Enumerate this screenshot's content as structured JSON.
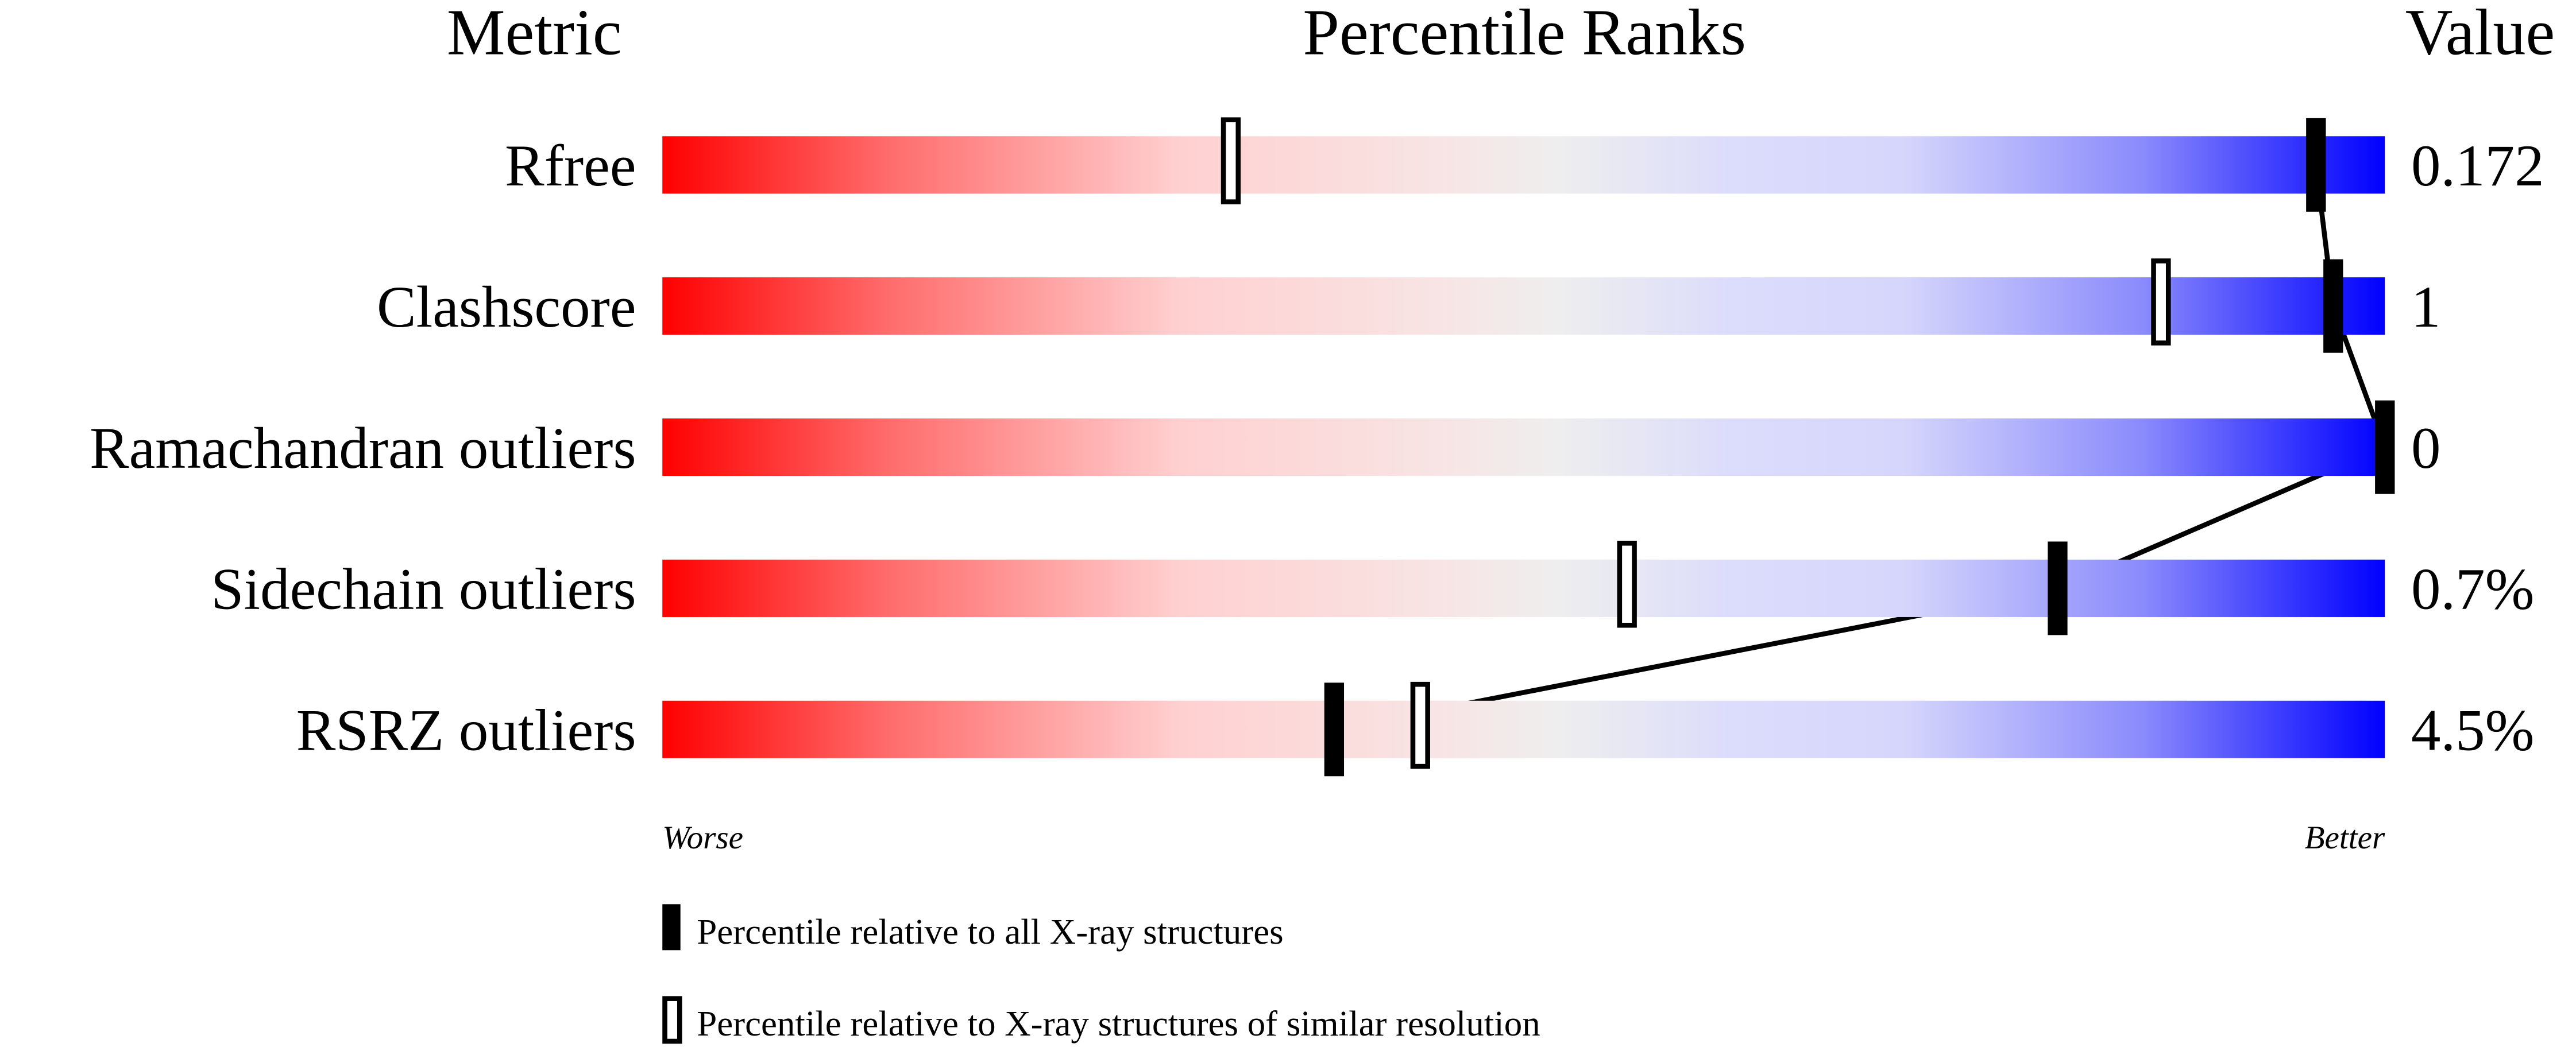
{
  "chart_data": {
    "type": "percentile-ranks",
    "headers": {
      "metric": "Metric",
      "ranks": "Percentile Ranks",
      "value": "Value"
    },
    "axis": {
      "worse": "Worse",
      "better": "Better",
      "range": [
        0,
        100
      ]
    },
    "metrics": [
      {
        "name": "Rfree",
        "value": "0.172",
        "percentile_all": 96,
        "percentile_similar": 33
      },
      {
        "name": "Clashscore",
        "value": "1",
        "percentile_all": 97,
        "percentile_similar": 87
      },
      {
        "name": "Ramachandran outliers",
        "value": "0",
        "percentile_all": 100,
        "percentile_similar": null
      },
      {
        "name": "Sidechain outliers",
        "value": "0.7%",
        "percentile_all": 81,
        "percentile_similar": 56
      },
      {
        "name": "RSRZ outliers",
        "value": "4.5%",
        "percentile_all": 39,
        "percentile_similar": 44
      }
    ],
    "legend": [
      {
        "marker": "filled",
        "label": "Percentile relative to all X-ray structures"
      },
      {
        "marker": "open",
        "label": "Percentile relative to X-ray structures of similar resolution"
      }
    ],
    "colors": {
      "worse": "#ff0000",
      "middle": "#eeeeee",
      "better": "#0000ff"
    }
  }
}
